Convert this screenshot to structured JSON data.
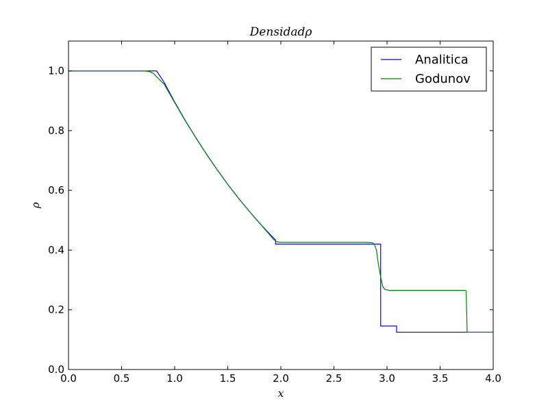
{
  "chart_data": {
    "type": "line",
    "title": "Densidadρ",
    "xlabel": "x",
    "ylabel": "ρ",
    "xlim": [
      0.0,
      4.0
    ],
    "ylim": [
      0.0,
      1.1
    ],
    "xticks": [
      "0.0",
      "0.5",
      "1.0",
      "1.5",
      "2.0",
      "2.5",
      "3.0",
      "3.5",
      "4.0"
    ],
    "yticks": [
      "0.0",
      "0.2",
      "0.4",
      "0.6",
      "0.8",
      "1.0"
    ],
    "grid": false,
    "legend_position": "top-right",
    "series": [
      {
        "name": "Analitica",
        "color": "#0000ff",
        "points": [
          [
            0.0,
            1.0
          ],
          [
            0.8,
            1.0
          ],
          [
            0.83,
            1.0
          ],
          [
            0.9,
            0.962
          ],
          [
            1.0,
            0.896
          ],
          [
            1.1,
            0.834
          ],
          [
            1.2,
            0.776
          ],
          [
            1.3,
            0.721
          ],
          [
            1.4,
            0.669
          ],
          [
            1.5,
            0.62
          ],
          [
            1.6,
            0.574
          ],
          [
            1.7,
            0.531
          ],
          [
            1.8,
            0.49
          ],
          [
            1.9,
            0.452
          ],
          [
            1.95,
            0.434
          ],
          [
            1.95,
            0.42
          ],
          [
            2.94,
            0.42
          ],
          [
            2.94,
            0.146
          ],
          [
            3.09,
            0.146
          ],
          [
            3.09,
            0.125
          ],
          [
            4.0,
            0.125
          ]
        ]
      },
      {
        "name": "Godunov",
        "color": "#008000",
        "points": [
          [
            0.0,
            1.0
          ],
          [
            0.72,
            1.0
          ],
          [
            0.76,
            0.998
          ],
          [
            0.8,
            0.992
          ],
          [
            0.83,
            0.98
          ],
          [
            0.9,
            0.956
          ],
          [
            1.0,
            0.894
          ],
          [
            1.1,
            0.833
          ],
          [
            1.2,
            0.776
          ],
          [
            1.3,
            0.721
          ],
          [
            1.4,
            0.669
          ],
          [
            1.5,
            0.62
          ],
          [
            1.6,
            0.574
          ],
          [
            1.7,
            0.531
          ],
          [
            1.8,
            0.49
          ],
          [
            1.9,
            0.449
          ],
          [
            1.93,
            0.436
          ],
          [
            1.96,
            0.428
          ],
          [
            2.0,
            0.426
          ],
          [
            2.8,
            0.426
          ],
          [
            2.86,
            0.425
          ],
          [
            2.88,
            0.42
          ],
          [
            2.9,
            0.4
          ],
          [
            2.92,
            0.35
          ],
          [
            2.94,
            0.31
          ],
          [
            2.96,
            0.278
          ],
          [
            2.98,
            0.268
          ],
          [
            3.02,
            0.265
          ],
          [
            3.74,
            0.265
          ],
          [
            3.745,
            0.262
          ],
          [
            3.755,
            0.125
          ],
          [
            4.0,
            0.125
          ]
        ]
      }
    ]
  }
}
